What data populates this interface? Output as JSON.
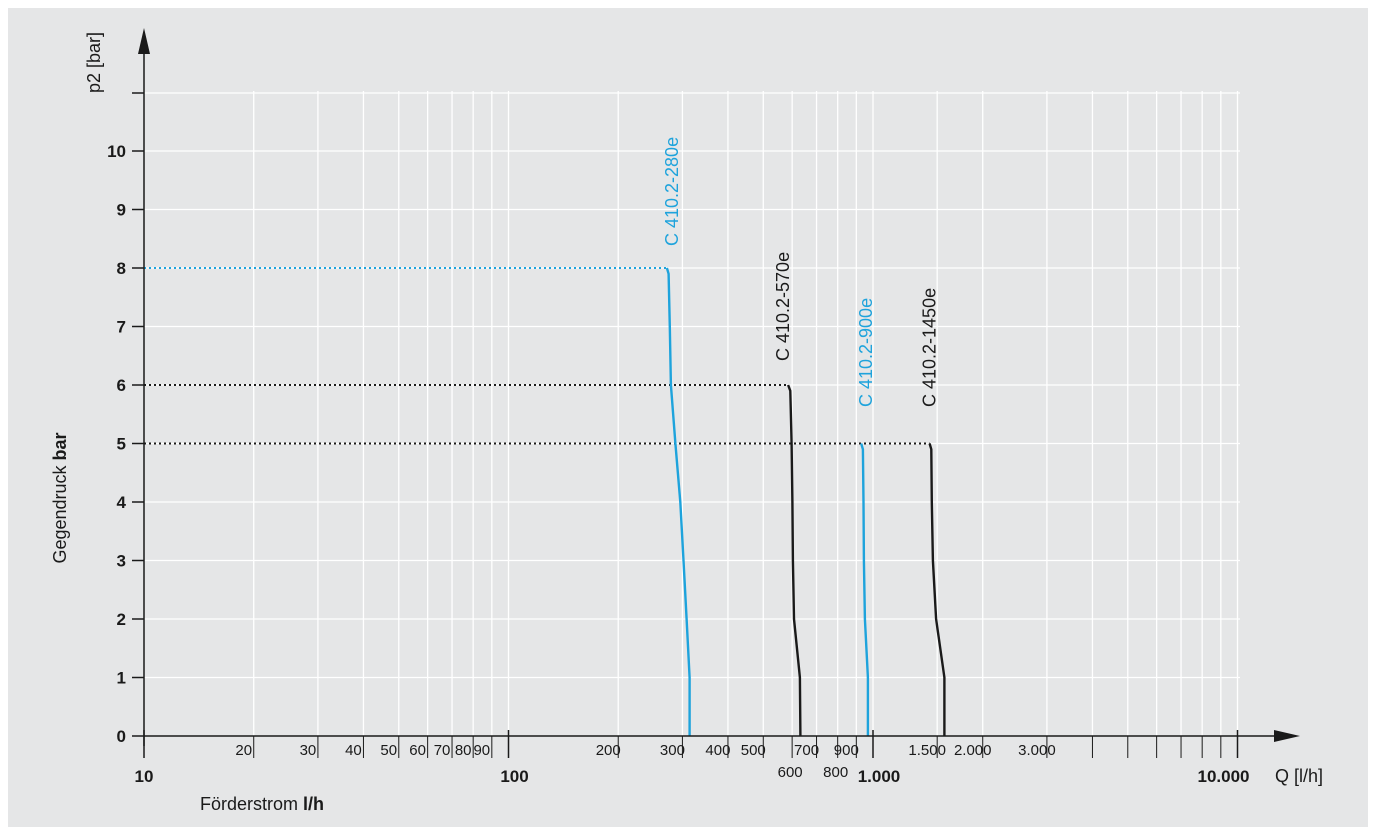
{
  "chart_data": {
    "type": "line",
    "x_scale": "log",
    "xlim": [
      10,
      20000
    ],
    "ylim": [
      0,
      11
    ],
    "grid": true,
    "y_axis_title": "p2 [bar]",
    "y_label": {
      "text": "Gegendruck ",
      "bold": "bar"
    },
    "x_axis_title": "Q [l/h]",
    "x_label": {
      "text": "Förderstrom ",
      "bold": "l/h"
    },
    "y_ticks": [
      "0",
      "1",
      "2",
      "3",
      "4",
      "5",
      "6",
      "7",
      "8",
      "9",
      "10"
    ],
    "x_ticks_major": [
      {
        "v": 10,
        "label": "10"
      },
      {
        "v": 100,
        "label": "100"
      },
      {
        "v": 1000,
        "label": "1.000"
      },
      {
        "v": 10000,
        "label": "10.000"
      }
    ],
    "x_ticks_minor": [
      {
        "v": 20,
        "label": "20"
      },
      {
        "v": 30,
        "label": "30"
      },
      {
        "v": 40,
        "label": "40"
      },
      {
        "v": 50,
        "label": "50"
      },
      {
        "v": 60,
        "label": "60"
      },
      {
        "v": 70,
        "label": "70"
      },
      {
        "v": 80,
        "label": "80"
      },
      {
        "v": 90,
        "label": "90"
      },
      {
        "v": 200,
        "label": "200"
      },
      {
        "v": 300,
        "label": "300"
      },
      {
        "v": 400,
        "label": "400"
      },
      {
        "v": 500,
        "label": "500"
      },
      {
        "v": 600,
        "label": "600",
        "low": true
      },
      {
        "v": 700,
        "label": "700"
      },
      {
        "v": 800,
        "label": "800",
        "low": true
      },
      {
        "v": 900,
        "label": "900"
      },
      {
        "v": 1500,
        "label": "1.500"
      },
      {
        "v": 2000,
        "label": "2.000"
      },
      {
        "v": 3000,
        "label": "3.000"
      },
      {
        "v": 4000,
        "label": ""
      },
      {
        "v": 5000,
        "label": ""
      },
      {
        "v": 6000,
        "label": ""
      },
      {
        "v": 7000,
        "label": ""
      },
      {
        "v": 8000,
        "label": ""
      },
      {
        "v": 9000,
        "label": ""
      }
    ],
    "series": [
      {
        "name": "C 410.2-280e",
        "color": "#1ea3dc",
        "max_pressure": 8,
        "points": [
          [
            272,
            8
          ],
          [
            275,
            7.9
          ],
          [
            277,
            7
          ],
          [
            279,
            6
          ],
          [
            287,
            5
          ],
          [
            296,
            4
          ],
          [
            302,
            3
          ],
          [
            308,
            2
          ],
          [
            314,
            1
          ],
          [
            314,
            0
          ]
        ]
      },
      {
        "name": "C 410.2-570e",
        "color": "#1a1a1a",
        "max_pressure": 6,
        "points": [
          [
            585,
            6
          ],
          [
            593,
            5.9
          ],
          [
            598,
            5
          ],
          [
            601,
            4
          ],
          [
            603,
            3
          ],
          [
            607,
            2
          ],
          [
            630,
            1
          ],
          [
            632,
            0
          ]
        ]
      },
      {
        "name": "C 410.2-900e",
        "color": "#1ea3dc",
        "max_pressure": 5,
        "points": [
          [
            928,
            5
          ],
          [
            938,
            4.9
          ],
          [
            942,
            4
          ],
          [
            944,
            3
          ],
          [
            950,
            2
          ],
          [
            968,
            1
          ],
          [
            968,
            0
          ]
        ]
      },
      {
        "name": "C 410.2-1450e",
        "color": "#1a1a1a",
        "max_pressure": 5,
        "points": [
          [
            1430,
            5
          ],
          [
            1445,
            4.9
          ],
          [
            1450,
            4
          ],
          [
            1460,
            3
          ],
          [
            1490,
            2
          ],
          [
            1570,
            1
          ],
          [
            1570,
            0
          ]
        ]
      }
    ]
  }
}
